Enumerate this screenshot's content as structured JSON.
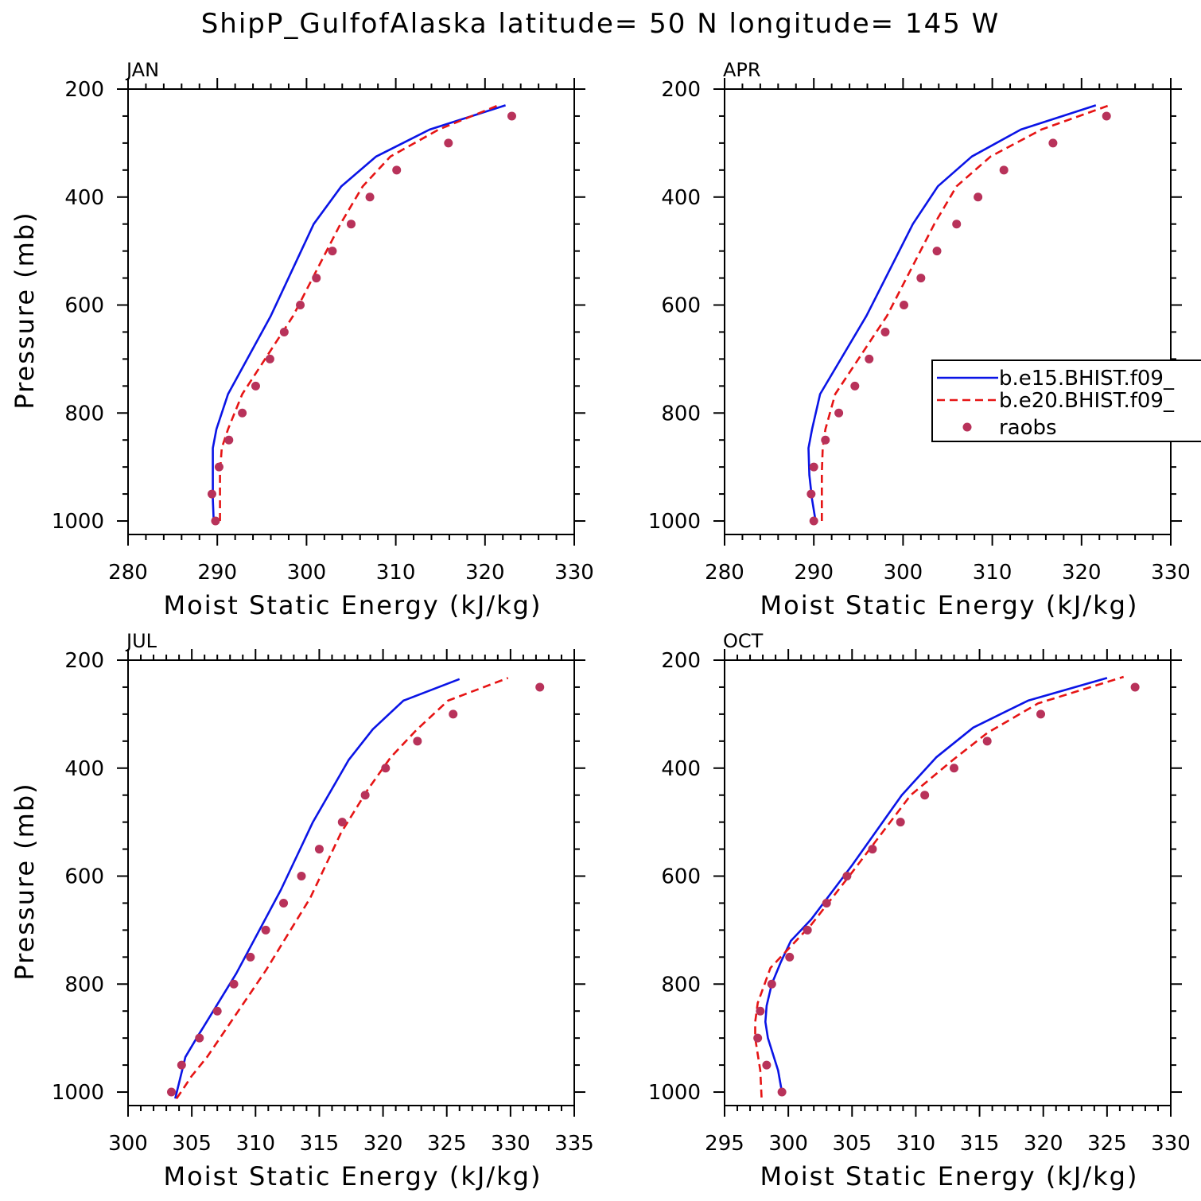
{
  "title": "ShipP_GulfofAlaska  latitude= 50 N longitude= 145 W",
  "colors": {
    "series1": "#0a14e6",
    "series2": "#e61414",
    "obs": "#b8325a",
    "axis": "#000000"
  },
  "legend": {
    "entries": [
      "b.e15.BHIST.f09_",
      "b.e20.BHIST.f09_",
      "raobs"
    ],
    "placement": "right (APR panel)"
  },
  "chart_data": [
    {
      "type": "line",
      "panel": "JAN",
      "xlabel": "Moist Static Energy (kJ/kg)",
      "ylabel": "Pressure (mb)",
      "xlim": [
        280,
        330
      ],
      "ylim": [
        1025,
        200
      ],
      "xticks": [
        280,
        290,
        300,
        310,
        320,
        330
      ],
      "yticks": [
        200,
        400,
        600,
        800,
        1000
      ],
      "series": [
        {
          "style": "solid",
          "color": "#0a14e6",
          "points": [
            [
              289.6,
              1000
            ],
            [
              289.5,
              960
            ],
            [
              289.5,
              910
            ],
            [
              289.5,
              865
            ],
            [
              289.9,
              830
            ],
            [
              291.2,
              765
            ],
            [
              296.0,
              620
            ],
            [
              300.8,
              450
            ],
            [
              303.9,
              380
            ],
            [
              307.8,
              325
            ],
            [
              313.8,
              275
            ],
            [
              322.3,
              230
            ]
          ]
        },
        {
          "style": "dashed",
          "color": "#e61414",
          "points": [
            [
              290.3,
              1000
            ],
            [
              290.3,
              960
            ],
            [
              290.3,
              910
            ],
            [
              290.5,
              865
            ],
            [
              291.2,
              830
            ],
            [
              292.8,
              765
            ],
            [
              298.5,
              620
            ],
            [
              303.8,
              450
            ],
            [
              306.3,
              380
            ],
            [
              309.4,
              325
            ],
            [
              314.8,
              275
            ],
            [
              321.5,
              230
            ]
          ]
        },
        {
          "style": "markers",
          "color": "#b8325a",
          "points": [
            [
              289.8,
              1000
            ],
            [
              289.4,
              950
            ],
            [
              290.2,
              900
            ],
            [
              291.3,
              850
            ],
            [
              292.8,
              800
            ],
            [
              294.3,
              750
            ],
            [
              295.9,
              700
            ],
            [
              297.5,
              650
            ],
            [
              299.3,
              600
            ],
            [
              301.1,
              550
            ],
            [
              302.9,
              500
            ],
            [
              305.0,
              450
            ],
            [
              307.1,
              400
            ],
            [
              310.1,
              350
            ],
            [
              315.9,
              300
            ],
            [
              323.0,
              250
            ]
          ]
        }
      ]
    },
    {
      "type": "line",
      "panel": "APR",
      "xlabel": "Moist Static Energy (kJ/kg)",
      "ylabel": "",
      "xlim": [
        280,
        330
      ],
      "ylim": [
        1025,
        200
      ],
      "xticks": [
        280,
        290,
        300,
        310,
        320,
        330
      ],
      "yticks": [
        200,
        400,
        600,
        800,
        1000
      ],
      "series": [
        {
          "style": "solid",
          "color": "#0a14e6",
          "points": [
            [
              290.2,
              1000
            ],
            [
              289.8,
              960
            ],
            [
              289.5,
              915
            ],
            [
              289.4,
              865
            ],
            [
              289.8,
              830
            ],
            [
              290.7,
              765
            ],
            [
              295.9,
              620
            ],
            [
              301.1,
              450
            ],
            [
              303.9,
              380
            ],
            [
              307.7,
              325
            ],
            [
              313.2,
              275
            ],
            [
              321.6,
              230
            ]
          ]
        },
        {
          "style": "dashed",
          "color": "#e61414",
          "points": [
            [
              290.9,
              1000
            ],
            [
              290.9,
              960
            ],
            [
              290.9,
              910
            ],
            [
              291.0,
              865
            ],
            [
              291.3,
              830
            ],
            [
              292.4,
              765
            ],
            [
              298.2,
              620
            ],
            [
              303.5,
              450
            ],
            [
              306.0,
              380
            ],
            [
              309.8,
              325
            ],
            [
              315.5,
              275
            ],
            [
              323.1,
              230
            ]
          ]
        },
        {
          "style": "markers",
          "color": "#b8325a",
          "points": [
            [
              290.0,
              1000
            ],
            [
              289.7,
              950
            ],
            [
              290.0,
              900
            ],
            [
              291.3,
              850
            ],
            [
              292.8,
              800
            ],
            [
              294.6,
              750
            ],
            [
              296.2,
              700
            ],
            [
              298.0,
              650
            ],
            [
              300.1,
              600
            ],
            [
              302.0,
              550
            ],
            [
              303.8,
              500
            ],
            [
              306.0,
              450
            ],
            [
              308.4,
              400
            ],
            [
              311.3,
              350
            ],
            [
              316.8,
              300
            ],
            [
              322.8,
              250
            ]
          ]
        }
      ]
    },
    {
      "type": "line",
      "panel": "JUL",
      "xlabel": "Moist Static Energy (kJ/kg)",
      "ylabel": "Pressure (mb)",
      "xlim": [
        300,
        335
      ],
      "ylim": [
        1025,
        200
      ],
      "xticks": [
        300,
        305,
        310,
        315,
        320,
        325,
        330,
        335
      ],
      "yticks": [
        200,
        400,
        600,
        800,
        1000
      ],
      "series": [
        {
          "style": "solid",
          "color": "#0a14e6",
          "points": [
            [
              303.7,
              1012
            ],
            [
              304.5,
              935
            ],
            [
              305.5,
              895
            ],
            [
              305.9,
              880
            ],
            [
              308.5,
              780
            ],
            [
              312.0,
              625
            ],
            [
              314.5,
              500
            ],
            [
              317.3,
              385
            ],
            [
              319.2,
              328
            ],
            [
              321.6,
              275
            ],
            [
              326.0,
              235
            ]
          ]
        },
        {
          "style": "dashed",
          "color": "#e61414",
          "points": [
            [
              303.8,
              1012
            ],
            [
              304.3,
              995
            ],
            [
              305.0,
              970
            ],
            [
              306.2,
              935
            ],
            [
              310.8,
              775
            ],
            [
              314.3,
              640
            ],
            [
              316.7,
              520
            ],
            [
              318.8,
              440
            ],
            [
              320.6,
              380
            ],
            [
              322.6,
              330
            ],
            [
              325.1,
              275
            ],
            [
              329.8,
              233
            ]
          ]
        },
        {
          "style": "markers",
          "color": "#b8325a",
          "points": [
            [
              303.4,
              1000
            ],
            [
              304.2,
              950
            ],
            [
              305.6,
              900
            ],
            [
              307.0,
              850
            ],
            [
              308.3,
              800
            ],
            [
              309.6,
              750
            ],
            [
              310.8,
              700
            ],
            [
              312.2,
              650
            ],
            [
              313.6,
              600
            ],
            [
              315.0,
              550
            ],
            [
              316.8,
              500
            ],
            [
              318.6,
              450
            ],
            [
              320.2,
              400
            ],
            [
              322.7,
              350
            ],
            [
              325.5,
              300
            ],
            [
              332.3,
              250
            ]
          ]
        }
      ]
    },
    {
      "type": "line",
      "panel": "OCT",
      "xlabel": "Moist Static Energy (kJ/kg)",
      "ylabel": "",
      "xlim": [
        295,
        330
      ],
      "ylim": [
        1025,
        200
      ],
      "xticks": [
        295,
        300,
        305,
        310,
        315,
        320,
        325,
        330
      ],
      "yticks": [
        200,
        400,
        600,
        800,
        1000
      ],
      "series": [
        {
          "style": "solid",
          "color": "#0a14e6",
          "points": [
            [
              299.5,
              1000
            ],
            [
              299.2,
              960
            ],
            [
              298.4,
              900
            ],
            [
              298.2,
              870
            ],
            [
              298.3,
              840
            ],
            [
              298.7,
              800
            ],
            [
              299.4,
              760
            ],
            [
              300.2,
              720
            ],
            [
              301.8,
              680
            ],
            [
              305.0,
              580
            ],
            [
              308.9,
              450
            ],
            [
              311.6,
              380
            ],
            [
              314.5,
              325
            ],
            [
              318.8,
              275
            ],
            [
              325.0,
              233
            ]
          ]
        },
        {
          "style": "dashed",
          "color": "#e61414",
          "points": [
            [
              297.9,
              1010
            ],
            [
              297.8,
              960
            ],
            [
              297.4,
              900
            ],
            [
              297.4,
              870
            ],
            [
              297.6,
              835
            ],
            [
              298.6,
              770
            ],
            [
              300.2,
              730
            ],
            [
              301.8,
              690
            ],
            [
              305.1,
              590
            ],
            [
              309.6,
              450
            ],
            [
              312.9,
              385
            ],
            [
              315.6,
              335
            ],
            [
              319.6,
              280
            ],
            [
              326.3,
              231
            ]
          ]
        },
        {
          "style": "markers",
          "color": "#b8325a",
          "points": [
            [
              299.5,
              1000
            ],
            [
              298.3,
              950
            ],
            [
              297.6,
              900
            ],
            [
              297.8,
              850
            ],
            [
              298.7,
              800
            ],
            [
              300.1,
              750
            ],
            [
              301.5,
              700
            ],
            [
              303.0,
              650
            ],
            [
              304.6,
              600
            ],
            [
              306.6,
              550
            ],
            [
              308.8,
              500
            ],
            [
              310.7,
              450
            ],
            [
              313.0,
              400
            ],
            [
              315.6,
              350
            ],
            [
              319.8,
              300
            ],
            [
              327.2,
              250
            ]
          ]
        }
      ]
    }
  ]
}
